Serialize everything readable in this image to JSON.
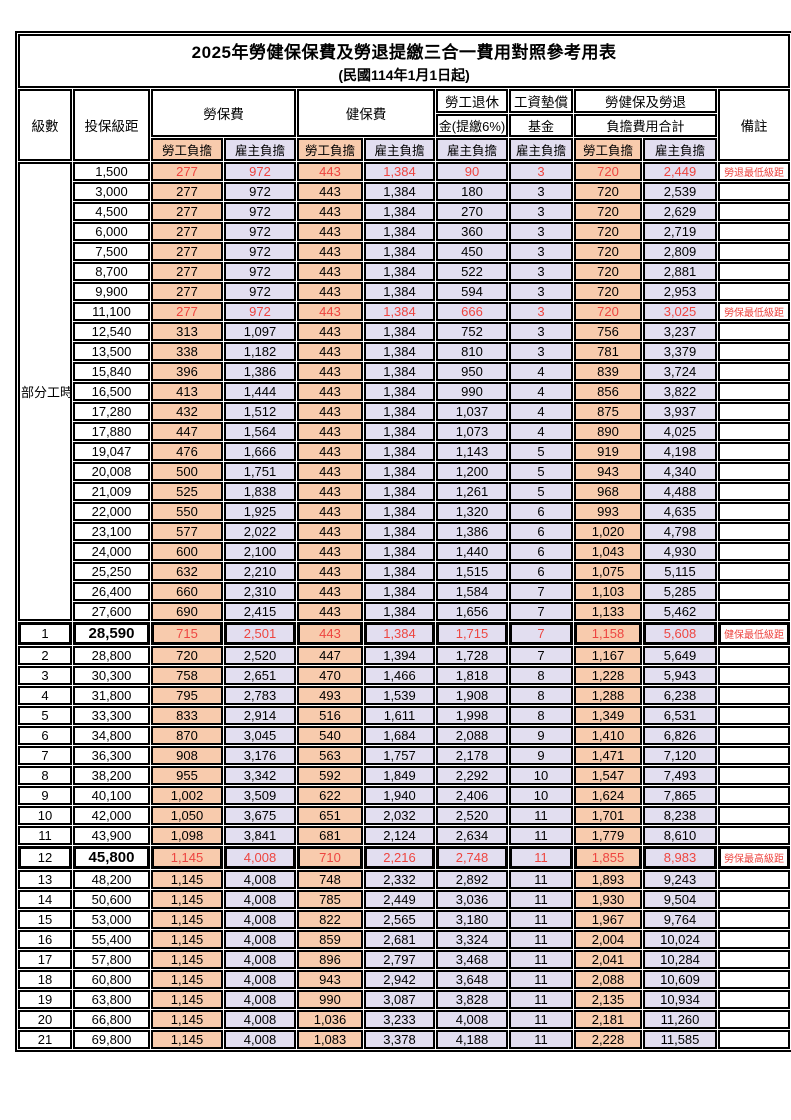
{
  "title": "2025年勞健保保費及勞退提繳三合一費用對照參考用表",
  "subtitle": "(民國114年1月1日起)",
  "colors": {
    "employee_bg": "#F8CBAD",
    "employer_bg": "#E2DEF0",
    "highlight_red": "#EE4540"
  },
  "header": {
    "level": "級數",
    "bracket": "投保級距",
    "labor_insurance": "勞保費",
    "health_insurance": "健保費",
    "pension_line1": "勞工退休",
    "pension_line2": "金(提繳6%)",
    "wage_fund_line1": "工資墊償",
    "wage_fund_line2": "基金",
    "total_line1": "勞健保及勞退",
    "total_line2": "負擔費用合計",
    "remark": "備註",
    "employee": "勞工負擔",
    "employer": "雇主負擔"
  },
  "part_time_label": "部分工時",
  "part_time_rowspan": 23,
  "value_columns": [
    "labor-insurance-employee",
    "labor-insurance-employer",
    "health-insurance-employee",
    "health-insurance-employer",
    "pension-employer",
    "wage-fund-employer",
    "total-employee",
    "total-employer"
  ],
  "rows": [
    {
      "level": null,
      "bracket": "1,500",
      "values": [
        "277",
        "972",
        "443",
        "1,384",
        "90",
        "3",
        "720",
        "2,449"
      ],
      "remark": "勞退最低級距",
      "red": true,
      "em": false
    },
    {
      "level": null,
      "bracket": "3,000",
      "values": [
        "277",
        "972",
        "443",
        "1,384",
        "180",
        "3",
        "720",
        "2,539"
      ],
      "remark": "",
      "red": false,
      "em": false
    },
    {
      "level": null,
      "bracket": "4,500",
      "values": [
        "277",
        "972",
        "443",
        "1,384",
        "270",
        "3",
        "720",
        "2,629"
      ],
      "remark": "",
      "red": false,
      "em": false
    },
    {
      "level": null,
      "bracket": "6,000",
      "values": [
        "277",
        "972",
        "443",
        "1,384",
        "360",
        "3",
        "720",
        "2,719"
      ],
      "remark": "",
      "red": false,
      "em": false
    },
    {
      "level": null,
      "bracket": "7,500",
      "values": [
        "277",
        "972",
        "443",
        "1,384",
        "450",
        "3",
        "720",
        "2,809"
      ],
      "remark": "",
      "red": false,
      "em": false
    },
    {
      "level": null,
      "bracket": "8,700",
      "values": [
        "277",
        "972",
        "443",
        "1,384",
        "522",
        "3",
        "720",
        "2,881"
      ],
      "remark": "",
      "red": false,
      "em": false
    },
    {
      "level": null,
      "bracket": "9,900",
      "values": [
        "277",
        "972",
        "443",
        "1,384",
        "594",
        "3",
        "720",
        "2,953"
      ],
      "remark": "",
      "red": false,
      "em": false
    },
    {
      "level": null,
      "bracket": "11,100",
      "values": [
        "277",
        "972",
        "443",
        "1,384",
        "666",
        "3",
        "720",
        "3,025"
      ],
      "remark": "勞保最低級距",
      "red": true,
      "em": false
    },
    {
      "level": null,
      "bracket": "12,540",
      "values": [
        "313",
        "1,097",
        "443",
        "1,384",
        "752",
        "3",
        "756",
        "3,237"
      ],
      "remark": "",
      "red": false,
      "em": false
    },
    {
      "level": null,
      "bracket": "13,500",
      "values": [
        "338",
        "1,182",
        "443",
        "1,384",
        "810",
        "3",
        "781",
        "3,379"
      ],
      "remark": "",
      "red": false,
      "em": false
    },
    {
      "level": null,
      "bracket": "15,840",
      "values": [
        "396",
        "1,386",
        "443",
        "1,384",
        "950",
        "4",
        "839",
        "3,724"
      ],
      "remark": "",
      "red": false,
      "em": false
    },
    {
      "level": null,
      "bracket": "16,500",
      "values": [
        "413",
        "1,444",
        "443",
        "1,384",
        "990",
        "4",
        "856",
        "3,822"
      ],
      "remark": "",
      "red": false,
      "em": false
    },
    {
      "level": null,
      "bracket": "17,280",
      "values": [
        "432",
        "1,512",
        "443",
        "1,384",
        "1,037",
        "4",
        "875",
        "3,937"
      ],
      "remark": "",
      "red": false,
      "em": false
    },
    {
      "level": null,
      "bracket": "17,880",
      "values": [
        "447",
        "1,564",
        "443",
        "1,384",
        "1,073",
        "4",
        "890",
        "4,025"
      ],
      "remark": "",
      "red": false,
      "em": false
    },
    {
      "level": null,
      "bracket": "19,047",
      "values": [
        "476",
        "1,666",
        "443",
        "1,384",
        "1,143",
        "5",
        "919",
        "4,198"
      ],
      "remark": "",
      "red": false,
      "em": false
    },
    {
      "level": null,
      "bracket": "20,008",
      "values": [
        "500",
        "1,751",
        "443",
        "1,384",
        "1,200",
        "5",
        "943",
        "4,340"
      ],
      "remark": "",
      "red": false,
      "em": false
    },
    {
      "level": null,
      "bracket": "21,009",
      "values": [
        "525",
        "1,838",
        "443",
        "1,384",
        "1,261",
        "5",
        "968",
        "4,488"
      ],
      "remark": "",
      "red": false,
      "em": false
    },
    {
      "level": null,
      "bracket": "22,000",
      "values": [
        "550",
        "1,925",
        "443",
        "1,384",
        "1,320",
        "6",
        "993",
        "4,635"
      ],
      "remark": "",
      "red": false,
      "em": false
    },
    {
      "level": null,
      "bracket": "23,100",
      "values": [
        "577",
        "2,022",
        "443",
        "1,384",
        "1,386",
        "6",
        "1,020",
        "4,798"
      ],
      "remark": "",
      "red": false,
      "em": false
    },
    {
      "level": null,
      "bracket": "24,000",
      "values": [
        "600",
        "2,100",
        "443",
        "1,384",
        "1,440",
        "6",
        "1,043",
        "4,930"
      ],
      "remark": "",
      "red": false,
      "em": false
    },
    {
      "level": null,
      "bracket": "25,250",
      "values": [
        "632",
        "2,210",
        "443",
        "1,384",
        "1,515",
        "6",
        "1,075",
        "5,115"
      ],
      "remark": "",
      "red": false,
      "em": false
    },
    {
      "level": null,
      "bracket": "26,400",
      "values": [
        "660",
        "2,310",
        "443",
        "1,384",
        "1,584",
        "7",
        "1,103",
        "5,285"
      ],
      "remark": "",
      "red": false,
      "em": false
    },
    {
      "level": null,
      "bracket": "27,600",
      "values": [
        "690",
        "2,415",
        "443",
        "1,384",
        "1,656",
        "7",
        "1,133",
        "5,462"
      ],
      "remark": "",
      "red": false,
      "em": false
    },
    {
      "level": "1",
      "bracket": "28,590",
      "values": [
        "715",
        "2,501",
        "443",
        "1,384",
        "1,715",
        "7",
        "1,158",
        "5,608"
      ],
      "remark": "健保最低級距",
      "red": true,
      "em": true
    },
    {
      "level": "2",
      "bracket": "28,800",
      "values": [
        "720",
        "2,520",
        "447",
        "1,394",
        "1,728",
        "7",
        "1,167",
        "5,649"
      ],
      "remark": "",
      "red": false,
      "em": false
    },
    {
      "level": "3",
      "bracket": "30,300",
      "values": [
        "758",
        "2,651",
        "470",
        "1,466",
        "1,818",
        "8",
        "1,228",
        "5,943"
      ],
      "remark": "",
      "red": false,
      "em": false
    },
    {
      "level": "4",
      "bracket": "31,800",
      "values": [
        "795",
        "2,783",
        "493",
        "1,539",
        "1,908",
        "8",
        "1,288",
        "6,238"
      ],
      "remark": "",
      "red": false,
      "em": false
    },
    {
      "level": "5",
      "bracket": "33,300",
      "values": [
        "833",
        "2,914",
        "516",
        "1,611",
        "1,998",
        "8",
        "1,349",
        "6,531"
      ],
      "remark": "",
      "red": false,
      "em": false
    },
    {
      "level": "6",
      "bracket": "34,800",
      "values": [
        "870",
        "3,045",
        "540",
        "1,684",
        "2,088",
        "9",
        "1,410",
        "6,826"
      ],
      "remark": "",
      "red": false,
      "em": false
    },
    {
      "level": "7",
      "bracket": "36,300",
      "values": [
        "908",
        "3,176",
        "563",
        "1,757",
        "2,178",
        "9",
        "1,471",
        "7,120"
      ],
      "remark": "",
      "red": false,
      "em": false
    },
    {
      "level": "8",
      "bracket": "38,200",
      "values": [
        "955",
        "3,342",
        "592",
        "1,849",
        "2,292",
        "10",
        "1,547",
        "7,493"
      ],
      "remark": "",
      "red": false,
      "em": false
    },
    {
      "level": "9",
      "bracket": "40,100",
      "values": [
        "1,002",
        "3,509",
        "622",
        "1,940",
        "2,406",
        "10",
        "1,624",
        "7,865"
      ],
      "remark": "",
      "red": false,
      "em": false
    },
    {
      "level": "10",
      "bracket": "42,000",
      "values": [
        "1,050",
        "3,675",
        "651",
        "2,032",
        "2,520",
        "11",
        "1,701",
        "8,238"
      ],
      "remark": "",
      "red": false,
      "em": false
    },
    {
      "level": "11",
      "bracket": "43,900",
      "values": [
        "1,098",
        "3,841",
        "681",
        "2,124",
        "2,634",
        "11",
        "1,779",
        "8,610"
      ],
      "remark": "",
      "red": false,
      "em": false
    },
    {
      "level": "12",
      "bracket": "45,800",
      "values": [
        "1,145",
        "4,008",
        "710",
        "2,216",
        "2,748",
        "11",
        "1,855",
        "8,983"
      ],
      "remark": "勞保最高級距",
      "red": true,
      "em": true
    },
    {
      "level": "13",
      "bracket": "48,200",
      "values": [
        "1,145",
        "4,008",
        "748",
        "2,332",
        "2,892",
        "11",
        "1,893",
        "9,243"
      ],
      "remark": "",
      "red": false,
      "em": false
    },
    {
      "level": "14",
      "bracket": "50,600",
      "values": [
        "1,145",
        "4,008",
        "785",
        "2,449",
        "3,036",
        "11",
        "1,930",
        "9,504"
      ],
      "remark": "",
      "red": false,
      "em": false
    },
    {
      "level": "15",
      "bracket": "53,000",
      "values": [
        "1,145",
        "4,008",
        "822",
        "2,565",
        "3,180",
        "11",
        "1,967",
        "9,764"
      ],
      "remark": "",
      "red": false,
      "em": false
    },
    {
      "level": "16",
      "bracket": "55,400",
      "values": [
        "1,145",
        "4,008",
        "859",
        "2,681",
        "3,324",
        "11",
        "2,004",
        "10,024"
      ],
      "remark": "",
      "red": false,
      "em": false
    },
    {
      "level": "17",
      "bracket": "57,800",
      "values": [
        "1,145",
        "4,008",
        "896",
        "2,797",
        "3,468",
        "11",
        "2,041",
        "10,284"
      ],
      "remark": "",
      "red": false,
      "em": false
    },
    {
      "level": "18",
      "bracket": "60,800",
      "values": [
        "1,145",
        "4,008",
        "943",
        "2,942",
        "3,648",
        "11",
        "2,088",
        "10,609"
      ],
      "remark": "",
      "red": false,
      "em": false
    },
    {
      "level": "19",
      "bracket": "63,800",
      "values": [
        "1,145",
        "4,008",
        "990",
        "3,087",
        "3,828",
        "11",
        "2,135",
        "10,934"
      ],
      "remark": "",
      "red": false,
      "em": false
    },
    {
      "level": "20",
      "bracket": "66,800",
      "values": [
        "1,145",
        "4,008",
        "1,036",
        "3,233",
        "4,008",
        "11",
        "2,181",
        "11,260"
      ],
      "remark": "",
      "red": false,
      "em": false
    },
    {
      "level": "21",
      "bracket": "69,800",
      "values": [
        "1,145",
        "4,008",
        "1,083",
        "3,378",
        "4,188",
        "11",
        "2,228",
        "11,585"
      ],
      "remark": "",
      "red": false,
      "em": false
    }
  ]
}
